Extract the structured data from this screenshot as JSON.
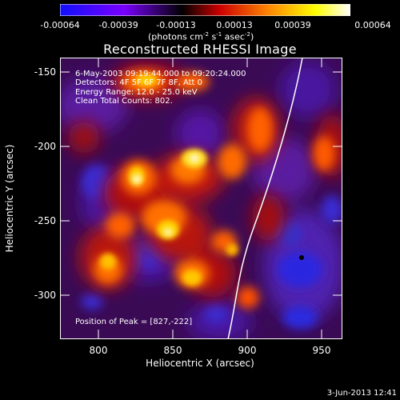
{
  "colorbar": {
    "ticks": [
      "-0.00064",
      "-0.00039",
      "-0.00013",
      "0.00013",
      "0.00039",
      "0.00064"
    ],
    "units_prefix": "(photons cm",
    "units_exp1": "-2",
    "units_mid": " s",
    "units_exp2": "-1",
    "units_mid2": " asec",
    "units_exp3": "-2",
    "units_suffix": ")",
    "colors": [
      "#1010ff",
      "#7a00ff",
      "#000000",
      "#cc0000",
      "#ff8800",
      "#ffff00",
      "#ffffff"
    ]
  },
  "title": "Reconstructed RHESSI Image",
  "annotations": {
    "time": "6-May-2003 09:19:44.000 to 09:20:24.000",
    "detectors": "Detectors: 4F 5F 6F 7F 8F, Att 0",
    "energy": "Energy Range: 12.0 - 25.0 keV",
    "clean": "Clean    Total Counts: 802.",
    "peak": "Position of Peak = [827,-222]"
  },
  "axes": {
    "xlabel": "Heliocentric X (arcsec)",
    "ylabel": "Heliocentric Y (arcsec)",
    "xticks": [
      "800",
      "850",
      "900",
      "950"
    ],
    "yticks": [
      "-150",
      "-200",
      "-250",
      "-300"
    ],
    "xrange": [
      775,
      965
    ],
    "yrange": [
      -140,
      -330
    ]
  },
  "limb_color": "#ffffff",
  "timestamp": "3-Jun-2013 12:41"
}
